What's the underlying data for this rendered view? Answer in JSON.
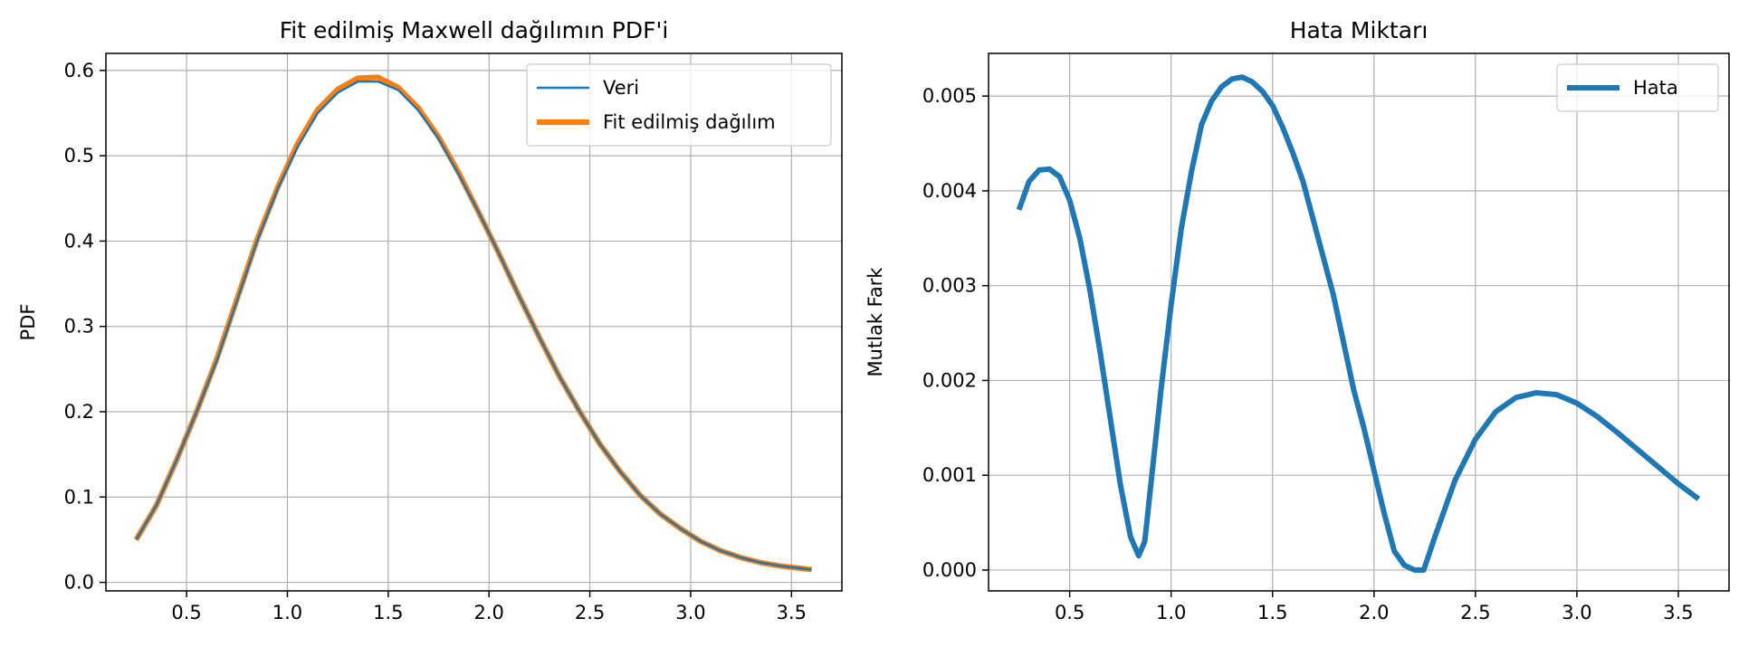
{
  "chart_data": [
    {
      "type": "line",
      "title": "Fit edilmiş Maxwell dağılımın PDF'i",
      "xlabel": "",
      "ylabel": "PDF",
      "xlim": [
        0.1,
        3.75
      ],
      "ylim": [
        -0.01,
        0.62
      ],
      "grid": true,
      "legend_position": "top-right",
      "xticks": [
        0.5,
        1.0,
        1.5,
        2.0,
        2.5,
        3.0,
        3.5
      ],
      "xtick_labels": [
        "0.5",
        "1.0",
        "1.5",
        "2.0",
        "2.5",
        "3.0",
        "3.5"
      ],
      "yticks": [
        0.0,
        0.1,
        0.2,
        0.3,
        0.4,
        0.5,
        0.6
      ],
      "ytick_labels": [
        "0.0",
        "0.1",
        "0.2",
        "0.3",
        "0.4",
        "0.5",
        "0.6"
      ],
      "series": [
        {
          "name": "Veri",
          "color": "#1f77b4",
          "width": "thin",
          "x": [
            0.25,
            0.35,
            0.45,
            0.55,
            0.65,
            0.75,
            0.85,
            0.95,
            1.05,
            1.15,
            1.25,
            1.35,
            1.45,
            1.55,
            1.65,
            1.75,
            1.85,
            1.95,
            2.05,
            2.15,
            2.25,
            2.35,
            2.45,
            2.55,
            2.65,
            2.75,
            2.85,
            2.95,
            3.05,
            3.15,
            3.25,
            3.35,
            3.45,
            3.6
          ],
          "y": [
            0.05,
            0.09,
            0.143,
            0.2,
            0.26,
            0.33,
            0.4,
            0.46,
            0.51,
            0.55,
            0.574,
            0.587,
            0.587,
            0.577,
            0.553,
            0.52,
            0.478,
            0.433,
            0.385,
            0.335,
            0.287,
            0.241,
            0.2,
            0.162,
            0.13,
            0.102,
            0.08,
            0.063,
            0.048,
            0.037,
            0.029,
            0.023,
            0.019,
            0.015
          ]
        },
        {
          "name": "Fit edilmiş dağılım",
          "color": "#ff7f0e",
          "width": "thick",
          "x": [
            0.25,
            0.35,
            0.45,
            0.55,
            0.65,
            0.75,
            0.85,
            0.95,
            1.05,
            1.15,
            1.25,
            1.35,
            1.45,
            1.55,
            1.65,
            1.75,
            1.85,
            1.95,
            2.05,
            2.15,
            2.25,
            2.35,
            2.45,
            2.55,
            2.65,
            2.75,
            2.85,
            2.95,
            3.05,
            3.15,
            3.25,
            3.35,
            3.45,
            3.6
          ],
          "y": [
            0.05,
            0.09,
            0.143,
            0.2,
            0.262,
            0.332,
            0.402,
            0.462,
            0.514,
            0.554,
            0.578,
            0.591,
            0.592,
            0.58,
            0.556,
            0.522,
            0.48,
            0.433,
            0.385,
            0.335,
            0.287,
            0.241,
            0.2,
            0.162,
            0.13,
            0.102,
            0.08,
            0.063,
            0.048,
            0.037,
            0.029,
            0.023,
            0.019,
            0.015
          ]
        }
      ]
    },
    {
      "type": "line",
      "title": "Hata Miktarı",
      "xlabel": "",
      "ylabel": "Mutlak Fark",
      "xlim": [
        0.1,
        3.75
      ],
      "ylim": [
        -0.00022,
        0.00545
      ],
      "grid": true,
      "legend_position": "top-right",
      "xticks": [
        0.5,
        1.0,
        1.5,
        2.0,
        2.5,
        3.0,
        3.5
      ],
      "xtick_labels": [
        "0.5",
        "1.0",
        "1.5",
        "2.0",
        "2.5",
        "3.0",
        "3.5"
      ],
      "yticks": [
        0.0,
        0.001,
        0.002,
        0.003,
        0.004,
        0.005
      ],
      "ytick_labels": [
        "0.000",
        "0.001",
        "0.002",
        "0.003",
        "0.004",
        "0.005"
      ],
      "series": [
        {
          "name": "Hata",
          "color": "#1f77b4",
          "width": "thick",
          "x": [
            0.25,
            0.3,
            0.35,
            0.4,
            0.45,
            0.5,
            0.55,
            0.6,
            0.65,
            0.7,
            0.75,
            0.8,
            0.84,
            0.87,
            0.9,
            0.95,
            1.0,
            1.05,
            1.1,
            1.15,
            1.2,
            1.25,
            1.3,
            1.35,
            1.4,
            1.45,
            1.5,
            1.55,
            1.6,
            1.65,
            1.7,
            1.75,
            1.8,
            1.85,
            1.9,
            1.95,
            2.0,
            2.05,
            2.1,
            2.15,
            2.2,
            2.245,
            2.3,
            2.4,
            2.5,
            2.6,
            2.7,
            2.8,
            2.9,
            3.0,
            3.1,
            3.2,
            3.3,
            3.4,
            3.5,
            3.6
          ],
          "y": [
            0.0038,
            0.0041,
            0.00422,
            0.00423,
            0.00415,
            0.0039,
            0.0035,
            0.00295,
            0.0023,
            0.0016,
            0.0009,
            0.00035,
            0.00015,
            0.0003,
            0.0009,
            0.0019,
            0.0028,
            0.0036,
            0.0042,
            0.0047,
            0.00495,
            0.0051,
            0.00518,
            0.0052,
            0.00515,
            0.00505,
            0.0049,
            0.00467,
            0.0044,
            0.0041,
            0.0037,
            0.0033,
            0.0029,
            0.0024,
            0.0019,
            0.0015,
            0.00105,
            0.0006,
            0.0002,
            5e-05,
            0.0,
            0.0,
            0.00035,
            0.00095,
            0.00138,
            0.00167,
            0.00182,
            0.00187,
            0.00185,
            0.00176,
            0.00162,
            0.00145,
            0.00127,
            0.00109,
            0.00091,
            0.00075
          ]
        }
      ]
    }
  ]
}
